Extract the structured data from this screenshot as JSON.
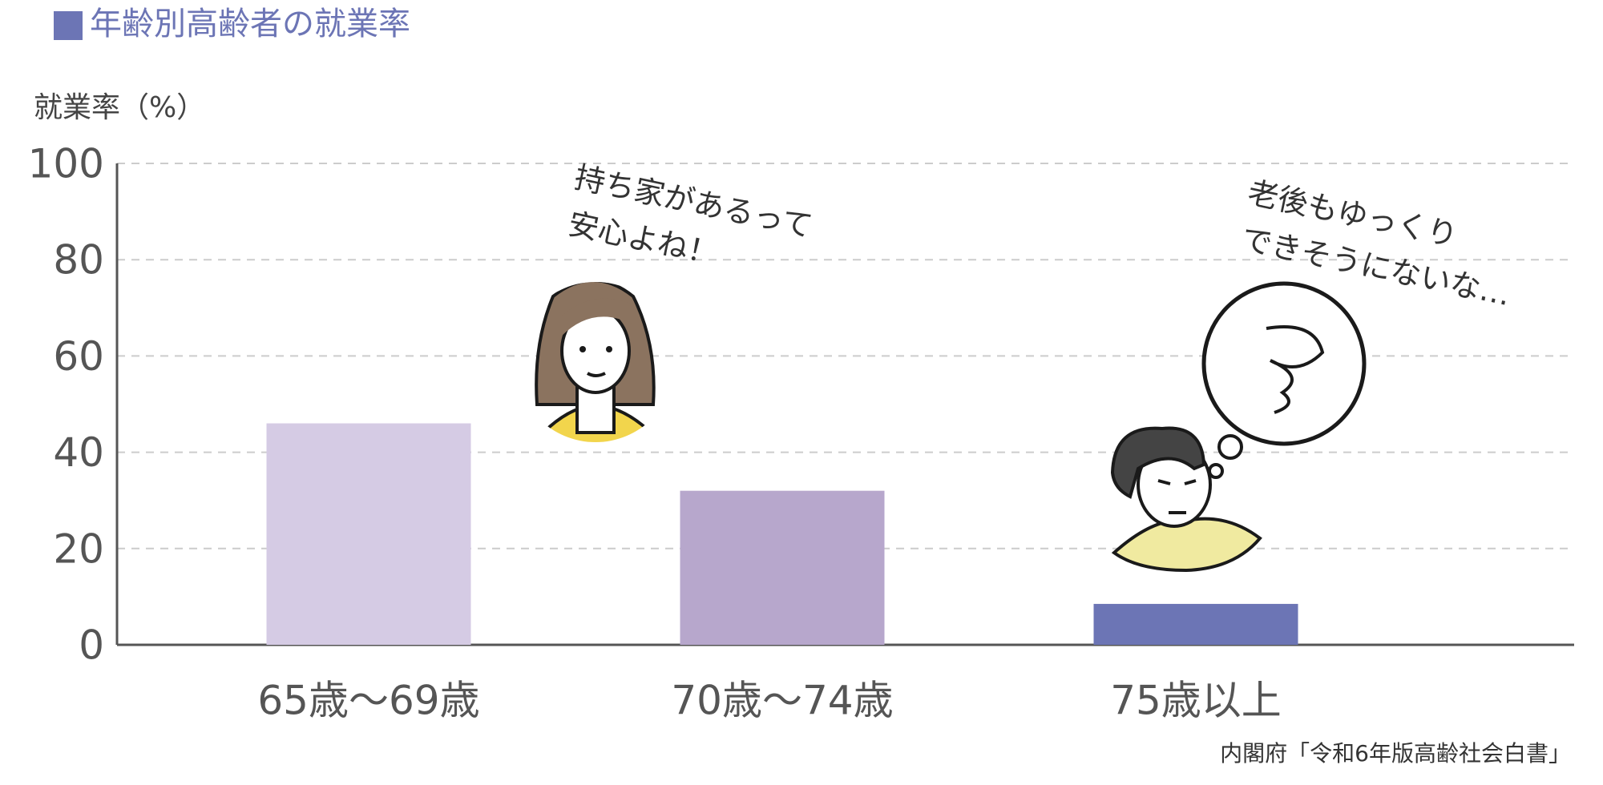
{
  "chart_data": {
    "type": "bar",
    "title": "年齢別高齢者の就業率",
    "y_label": "就業率（%）",
    "categories": [
      "65歳～69歳",
      "70歳～74歳",
      "75歳以上"
    ],
    "values": [
      46,
      32,
      8.5
    ],
    "colors": [
      "#d5cbe4",
      "#b7a7cc",
      "#6c75b5"
    ],
    "ylim": [
      0,
      100
    ],
    "yticks": [
      0,
      20,
      40,
      60,
      80,
      100
    ],
    "grid": true,
    "annotations": [
      [
        "持ち家があるって",
        "安心よね！"
      ],
      [
        "老後もゆっくり",
        "できそうにないな…"
      ]
    ],
    "source": "内閣府「令和6年版高齢社会白書」"
  }
}
